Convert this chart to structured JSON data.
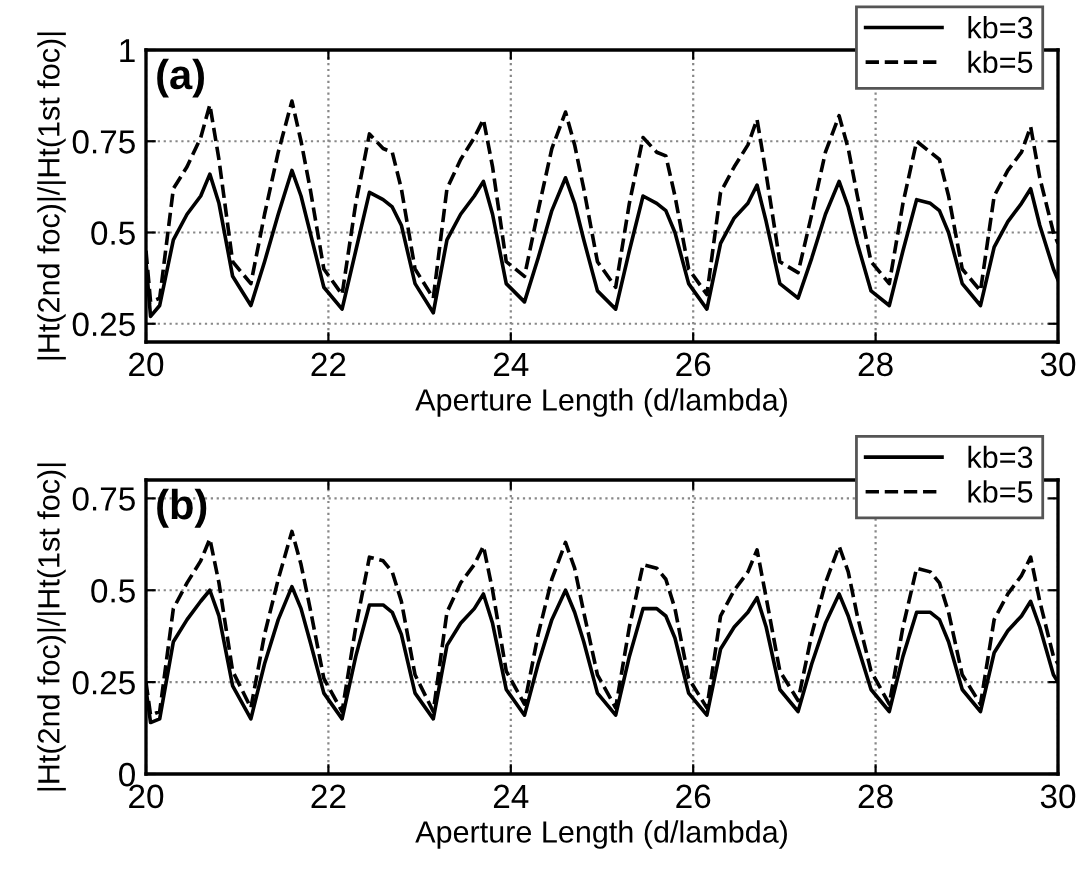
{
  "chart_data": [
    {
      "type": "line",
      "xlabel": "Aperture Length (d/lambda)",
      "ylabel": "|Ht(2nd foc)|/|Ht(1st foc)|",
      "annotations": [
        "(a)"
      ],
      "xlim": [
        20,
        30
      ],
      "ylim": [
        0.2,
        1
      ],
      "xticks": [
        20,
        22,
        24,
        26,
        28,
        30
      ],
      "yticks": [
        0.25,
        0.5,
        0.75,
        1
      ],
      "grid": true,
      "legend": "top right",
      "x": [
        20,
        20.05,
        20.15,
        20.3,
        20.45,
        20.6,
        20.7,
        20.8,
        20.95,
        21.15,
        21.3,
        21.45,
        21.6,
        21.7,
        21.8,
        21.95,
        22.15,
        22.3,
        22.45,
        22.6,
        22.7,
        22.8,
        22.95,
        23.15,
        23.3,
        23.45,
        23.6,
        23.7,
        23.8,
        23.95,
        24.15,
        24.3,
        24.45,
        24.6,
        24.7,
        24.8,
        24.95,
        25.15,
        25.3,
        25.45,
        25.6,
        25.7,
        25.8,
        25.95,
        26.15,
        26.3,
        26.45,
        26.6,
        26.7,
        26.8,
        26.95,
        27.15,
        27.3,
        27.45,
        27.6,
        27.7,
        27.8,
        27.95,
        28.15,
        28.3,
        28.45,
        28.6,
        28.7,
        28.8,
        28.95,
        29.15,
        29.3,
        29.45,
        29.6,
        29.7,
        29.8,
        29.95,
        30
      ],
      "series": [
        {
          "name": "kb=3",
          "color": "#000000",
          "line_style": "solid",
          "values": [
            0.42,
            0.27,
            0.3,
            0.48,
            0.55,
            0.6,
            0.66,
            0.58,
            0.38,
            0.3,
            0.42,
            0.55,
            0.67,
            0.6,
            0.5,
            0.35,
            0.29,
            0.45,
            0.61,
            0.59,
            0.57,
            0.52,
            0.36,
            0.28,
            0.48,
            0.55,
            0.6,
            0.64,
            0.55,
            0.36,
            0.31,
            0.43,
            0.56,
            0.65,
            0.58,
            0.48,
            0.34,
            0.29,
            0.45,
            0.6,
            0.58,
            0.56,
            0.5,
            0.36,
            0.29,
            0.47,
            0.54,
            0.58,
            0.63,
            0.53,
            0.36,
            0.32,
            0.43,
            0.55,
            0.64,
            0.57,
            0.47,
            0.34,
            0.3,
            0.45,
            0.59,
            0.58,
            0.56,
            0.5,
            0.36,
            0.3,
            0.46,
            0.53,
            0.58,
            0.62,
            0.52,
            0.4,
            0.37
          ]
        },
        {
          "name": "kb=5",
          "color": "#000000",
          "line_style": "dashed",
          "values": [
            0.45,
            0.31,
            0.32,
            0.62,
            0.68,
            0.76,
            0.85,
            0.7,
            0.42,
            0.36,
            0.55,
            0.72,
            0.86,
            0.75,
            0.62,
            0.4,
            0.33,
            0.58,
            0.77,
            0.73,
            0.72,
            0.62,
            0.4,
            0.32,
            0.62,
            0.7,
            0.76,
            0.81,
            0.68,
            0.42,
            0.38,
            0.56,
            0.73,
            0.83,
            0.74,
            0.62,
            0.42,
            0.35,
            0.58,
            0.76,
            0.72,
            0.71,
            0.6,
            0.4,
            0.33,
            0.61,
            0.68,
            0.74,
            0.81,
            0.66,
            0.42,
            0.39,
            0.55,
            0.72,
            0.82,
            0.73,
            0.6,
            0.42,
            0.36,
            0.58,
            0.75,
            0.72,
            0.7,
            0.6,
            0.4,
            0.34,
            0.6,
            0.67,
            0.72,
            0.79,
            0.65,
            0.5,
            0.47
          ]
        }
      ]
    },
    {
      "type": "line",
      "xlabel": "Aperture Length (d/lambda)",
      "ylabel": "|Ht(2nd foc)|/|Ht(1st foc)|",
      "annotations": [
        "(b)"
      ],
      "xlim": [
        20,
        30
      ],
      "ylim": [
        0,
        0.8
      ],
      "xticks": [
        20,
        22,
        24,
        26,
        28,
        30
      ],
      "yticks": [
        0,
        0.25,
        0.5,
        0.75
      ],
      "grid": true,
      "legend": "top right",
      "x": [
        20,
        20.05,
        20.15,
        20.3,
        20.45,
        20.6,
        20.7,
        20.8,
        20.95,
        21.15,
        21.3,
        21.45,
        21.6,
        21.7,
        21.8,
        21.95,
        22.15,
        22.3,
        22.45,
        22.6,
        22.7,
        22.8,
        22.95,
        23.15,
        23.3,
        23.45,
        23.6,
        23.7,
        23.8,
        23.95,
        24.15,
        24.3,
        24.45,
        24.6,
        24.7,
        24.8,
        24.95,
        25.15,
        25.3,
        25.45,
        25.6,
        25.7,
        25.8,
        25.95,
        26.15,
        26.3,
        26.45,
        26.6,
        26.7,
        26.8,
        26.95,
        27.15,
        27.3,
        27.45,
        27.6,
        27.7,
        27.8,
        27.95,
        28.15,
        28.3,
        28.45,
        28.6,
        28.7,
        28.8,
        28.95,
        29.15,
        29.3,
        29.45,
        29.6,
        29.7,
        29.8,
        29.95,
        30
      ],
      "series": [
        {
          "name": "kb=3",
          "color": "#000000",
          "line_style": "solid",
          "values": [
            0.23,
            0.14,
            0.15,
            0.36,
            0.42,
            0.47,
            0.5,
            0.43,
            0.24,
            0.15,
            0.3,
            0.42,
            0.51,
            0.45,
            0.36,
            0.22,
            0.15,
            0.32,
            0.46,
            0.46,
            0.44,
            0.38,
            0.22,
            0.15,
            0.35,
            0.41,
            0.45,
            0.49,
            0.41,
            0.23,
            0.16,
            0.3,
            0.42,
            0.5,
            0.44,
            0.36,
            0.22,
            0.16,
            0.32,
            0.45,
            0.45,
            0.43,
            0.37,
            0.22,
            0.16,
            0.34,
            0.4,
            0.44,
            0.48,
            0.4,
            0.23,
            0.17,
            0.3,
            0.41,
            0.49,
            0.43,
            0.35,
            0.23,
            0.17,
            0.32,
            0.44,
            0.44,
            0.42,
            0.36,
            0.23,
            0.17,
            0.33,
            0.39,
            0.43,
            0.47,
            0.4,
            0.27,
            0.25
          ]
        },
        {
          "name": "kb=5",
          "color": "#000000",
          "line_style": "dashed",
          "values": [
            0.25,
            0.16,
            0.17,
            0.45,
            0.52,
            0.58,
            0.64,
            0.52,
            0.28,
            0.18,
            0.38,
            0.53,
            0.66,
            0.57,
            0.45,
            0.26,
            0.17,
            0.4,
            0.59,
            0.58,
            0.55,
            0.47,
            0.27,
            0.17,
            0.44,
            0.52,
            0.57,
            0.62,
            0.5,
            0.28,
            0.19,
            0.38,
            0.53,
            0.63,
            0.56,
            0.44,
            0.27,
            0.18,
            0.4,
            0.57,
            0.56,
            0.53,
            0.45,
            0.26,
            0.18,
            0.43,
            0.5,
            0.55,
            0.61,
            0.48,
            0.28,
            0.2,
            0.38,
            0.52,
            0.62,
            0.55,
            0.43,
            0.28,
            0.19,
            0.4,
            0.56,
            0.55,
            0.52,
            0.44,
            0.27,
            0.19,
            0.42,
            0.49,
            0.54,
            0.59,
            0.47,
            0.32,
            0.3
          ]
        }
      ]
    }
  ]
}
